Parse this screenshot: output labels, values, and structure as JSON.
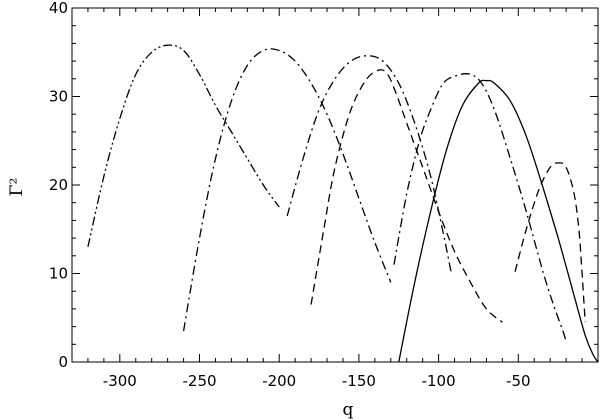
{
  "chart_data": {
    "type": "line",
    "xlabel": "q",
    "ylabel": "Γ²",
    "xlim": [
      -330,
      0
    ],
    "ylim": [
      0,
      40
    ],
    "xticks": [
      -300,
      -250,
      -200,
      -150,
      -100,
      -50
    ],
    "yticks": [
      0,
      10,
      20,
      30,
      40
    ],
    "grid": false,
    "series": [
      {
        "style": "solid",
        "x": [
          -125,
          -115,
          -105,
          -95,
          -85,
          -75,
          -70,
          -65,
          -55,
          -45,
          -35,
          -25,
          -15,
          -8,
          -3,
          0
        ],
        "y": [
          0,
          9,
          17,
          24,
          29,
          31.5,
          31.8,
          31.5,
          29.5,
          25.5,
          20,
          14,
          7.5,
          3,
          0.8,
          0
        ]
      },
      {
        "style": "dashed",
        "x": [
          -52,
          -45,
          -37,
          -30,
          -25,
          -20,
          -15,
          -12,
          -10,
          -8
        ],
        "y": [
          10.2,
          15,
          19.5,
          22,
          22.5,
          22,
          19,
          15,
          10,
          4.5
        ]
      },
      {
        "style": "dashed",
        "x": [
          -180,
          -172,
          -165,
          -155,
          -145,
          -137,
          -132,
          -127,
          -120,
          -110,
          -100,
          -90,
          -80,
          -70,
          -60
        ],
        "y": [
          6.5,
          15,
          22,
          28.5,
          32,
          33,
          32.5,
          30.5,
          27,
          22,
          17,
          12.5,
          9,
          6,
          4.5
        ]
      },
      {
        "style": "dashdot",
        "x": [
          -128,
          -120,
          -112,
          -105,
          -97,
          -88,
          -80,
          -73,
          -65,
          -55,
          -45,
          -35,
          -28,
          -22,
          -20
        ],
        "y": [
          11,
          19,
          25,
          28.5,
          31.5,
          32.4,
          32.5,
          31.5,
          28.5,
          23,
          17,
          10.5,
          6.5,
          3.5,
          2.3
        ]
      },
      {
        "style": "dashdot",
        "x": [
          -195,
          -185,
          -175,
          -165,
          -155,
          -145,
          -135,
          -125,
          -115,
          -105,
          -97,
          -92
        ],
        "y": [
          16.5,
          23,
          28.5,
          32,
          34,
          34.6,
          34,
          31.5,
          27,
          21,
          14.5,
          10
        ]
      },
      {
        "style": "dashdot",
        "x": [
          -260,
          -250,
          -240,
          -230,
          -220,
          -210,
          -200,
          -190,
          -180,
          -170,
          -160,
          -150,
          -140,
          -130
        ],
        "y": [
          3.5,
          14,
          23,
          29.5,
          33.5,
          35.2,
          35.2,
          34,
          31.5,
          28,
          23.5,
          18.5,
          13.5,
          9
        ]
      },
      {
        "style": "dashdotdot",
        "x": [
          -320,
          -310,
          -300,
          -290,
          -280,
          -270,
          -260,
          -250,
          -240,
          -230,
          -220,
          -210,
          -200
        ],
        "y": [
          13,
          21,
          27.5,
          32.5,
          35,
          35.8,
          35.2,
          32.5,
          29,
          26,
          23,
          20,
          17.5
        ]
      }
    ]
  }
}
